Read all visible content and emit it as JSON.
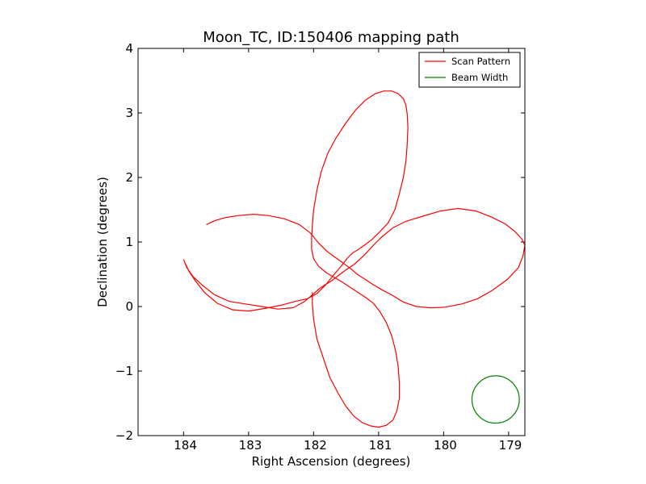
{
  "chart_data": {
    "type": "line",
    "title": "Moon_TC, ID:150406 mapping path",
    "xlabel": "Right Ascension (degrees)",
    "ylabel": "Declination (degrees)",
    "xlim": [
      184.7,
      178.75
    ],
    "ylim": [
      -2,
      4
    ],
    "xticks": [
      184,
      183,
      182,
      181,
      180,
      179
    ],
    "yticks": [
      -2,
      -1,
      0,
      1,
      2,
      3,
      4
    ],
    "ytick_labels": [
      "−2",
      "−1",
      "0",
      "1",
      "2",
      "3",
      "4"
    ],
    "grid": false,
    "legend_position": "top-right",
    "series": [
      {
        "name": "Scan Pattern",
        "color": "#ff0000",
        "x": [
          183.65,
          183.52,
          183.35,
          183.15,
          182.92,
          182.7,
          182.45,
          182.22,
          182.05,
          181.92,
          181.8,
          181.68,
          181.58,
          181.5,
          181.42,
          181.33,
          181.22,
          181.1,
          180.95,
          180.8,
          180.62,
          180.42,
          180.2,
          179.98,
          179.72,
          179.48,
          179.25,
          179.02,
          178.85,
          178.78,
          178.75,
          178.8,
          178.9,
          179.05,
          179.25,
          179.5,
          179.78,
          180.05,
          180.32,
          180.58,
          180.78,
          180.95,
          181.08,
          181.18,
          181.28,
          181.38,
          181.5,
          181.62,
          181.72,
          181.82,
          181.92,
          182.02,
          182.15,
          182.32,
          182.55,
          182.8,
          183.05,
          183.3,
          183.52,
          183.7,
          183.85,
          183.95,
          184.0,
          183.98,
          183.92,
          183.82,
          183.68,
          183.48,
          183.25,
          183.0,
          182.75,
          182.5,
          182.28,
          182.1,
          181.95,
          181.82,
          181.7,
          181.58,
          181.48,
          181.4,
          181.32,
          181.22,
          181.1,
          180.98,
          180.85,
          180.75,
          180.68,
          180.62,
          180.58,
          180.56,
          180.55,
          180.56,
          180.58,
          180.62,
          180.7,
          180.8,
          180.92,
          181.05,
          181.2,
          181.35,
          181.5,
          181.65,
          181.78,
          181.88,
          181.95,
          182.0,
          182.02,
          182.03,
          182.03,
          182.0,
          181.92,
          181.8,
          181.68,
          181.56,
          181.44,
          181.32,
          181.2,
          181.08,
          180.98,
          180.88,
          180.8,
          180.74,
          180.7,
          180.68,
          180.68,
          180.72,
          180.78,
          180.88,
          181.0,
          181.12,
          181.25,
          181.38,
          181.5,
          181.62,
          181.75,
          181.85,
          181.95,
          182.0,
          182.02,
          182.02
        ],
        "y": [
          1.27,
          1.33,
          1.38,
          1.41,
          1.43,
          1.41,
          1.36,
          1.27,
          1.14,
          0.98,
          0.86,
          0.77,
          0.7,
          0.64,
          0.58,
          0.5,
          0.43,
          0.35,
          0.26,
          0.18,
          0.07,
          0.0,
          -0.02,
          -0.01,
          0.04,
          0.12,
          0.25,
          0.42,
          0.6,
          0.78,
          0.95,
          1.05,
          1.16,
          1.28,
          1.38,
          1.48,
          1.52,
          1.48,
          1.4,
          1.32,
          1.22,
          1.08,
          0.95,
          0.84,
          0.74,
          0.65,
          0.57,
          0.48,
          0.4,
          0.34,
          0.27,
          0.18,
          0.07,
          -0.02,
          -0.04,
          0.0,
          0.04,
          0.08,
          0.18,
          0.32,
          0.46,
          0.6,
          0.73,
          0.68,
          0.55,
          0.4,
          0.22,
          0.05,
          -0.05,
          -0.07,
          -0.03,
          0.02,
          0.08,
          0.12,
          0.2,
          0.33,
          0.48,
          0.62,
          0.75,
          0.83,
          0.88,
          0.95,
          1.04,
          1.16,
          1.3,
          1.5,
          1.75,
          2.0,
          2.25,
          2.52,
          2.78,
          2.98,
          3.12,
          3.22,
          3.3,
          3.34,
          3.34,
          3.3,
          3.2,
          3.05,
          2.85,
          2.62,
          2.38,
          2.1,
          1.8,
          1.5,
          1.25,
          1.05,
          0.88,
          0.74,
          0.62,
          0.52,
          0.45,
          0.38,
          0.3,
          0.22,
          0.14,
          0.05,
          -0.08,
          -0.25,
          -0.45,
          -0.68,
          -0.92,
          -1.18,
          -1.42,
          -1.62,
          -1.76,
          -1.84,
          -1.87,
          -1.85,
          -1.8,
          -1.7,
          -1.55,
          -1.35,
          -1.1,
          -0.8,
          -0.5,
          -0.2,
          0.05,
          0.22
        ]
      },
      {
        "name": "Beam Width",
        "color": "#008000",
        "circle_center": [
          179.2,
          -1.44
        ],
        "circle_radius_deg": 0.366
      }
    ]
  }
}
